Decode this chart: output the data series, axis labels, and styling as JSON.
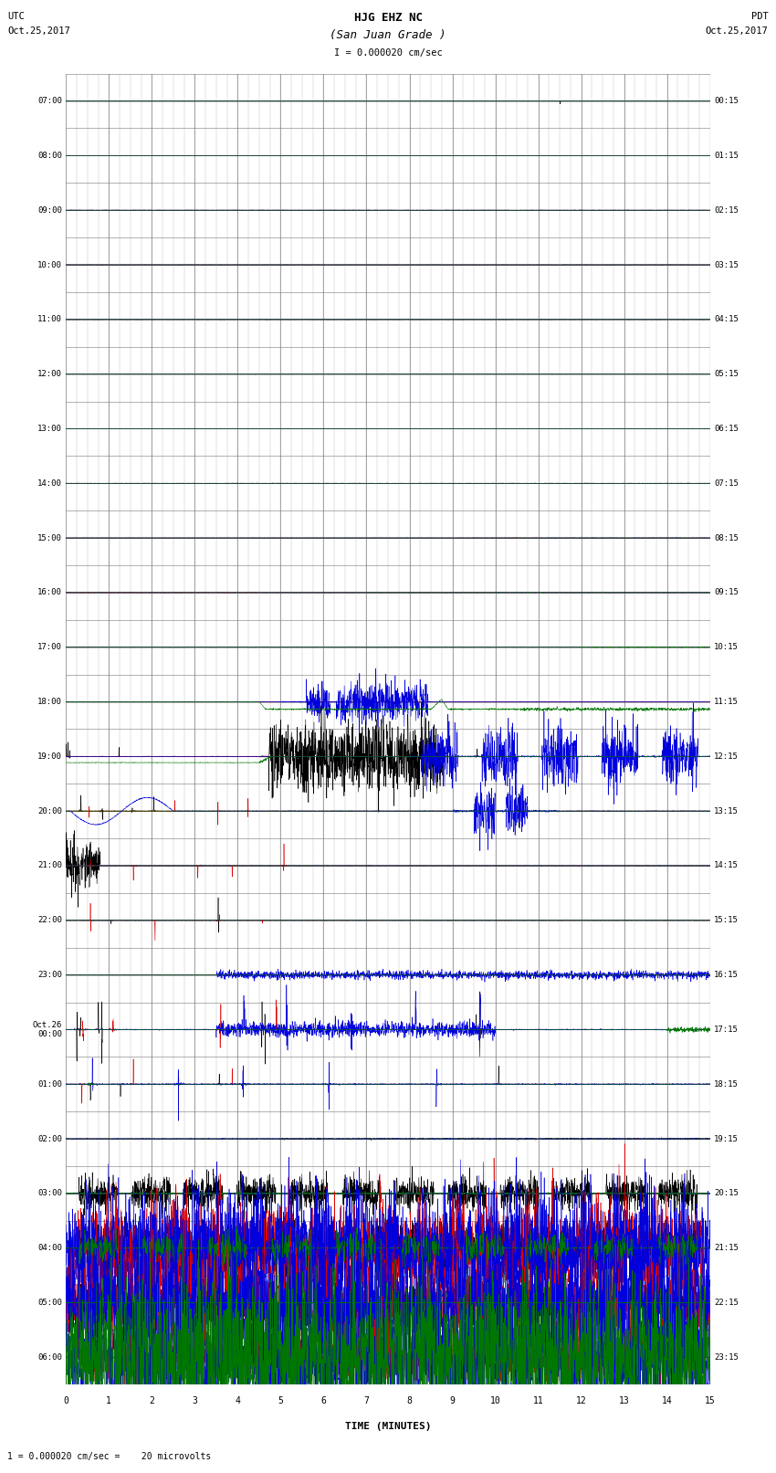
{
  "title_line1": "HJG EHZ NC",
  "title_line2": "(San Juan Grade )",
  "title_scale": "I = 0.000020 cm/sec",
  "left_header_line1": "UTC",
  "left_header_line2": "Oct.25,2017",
  "right_header_line1": "PDT",
  "right_header_line2": "Oct.25,2017",
  "utc_times": [
    "07:00",
    "08:00",
    "09:00",
    "10:00",
    "11:00",
    "12:00",
    "13:00",
    "14:00",
    "15:00",
    "16:00",
    "17:00",
    "18:00",
    "19:00",
    "20:00",
    "21:00",
    "22:00",
    "23:00",
    "Oct.26\n00:00",
    "01:00",
    "02:00",
    "03:00",
    "04:00",
    "05:00",
    "06:00"
  ],
  "pdt_times": [
    "00:15",
    "01:15",
    "02:15",
    "03:15",
    "04:15",
    "05:15",
    "06:15",
    "07:15",
    "08:15",
    "09:15",
    "10:15",
    "11:15",
    "12:15",
    "13:15",
    "14:15",
    "15:15",
    "16:15",
    "17:15",
    "18:15",
    "19:15",
    "20:15",
    "21:15",
    "22:15",
    "23:15"
  ],
  "footer_text": "1 = 0.000020 cm/sec =    20 microvolts",
  "xlabel": "TIME (MINUTES)",
  "bg_color": "#ffffff",
  "grid_major_color": "#777777",
  "grid_minor_color": "#bbbbbb",
  "color_black": "#000000",
  "color_red": "#dd0000",
  "color_blue": "#0000dd",
  "color_green": "#007700",
  "fig_width": 8.5,
  "fig_height": 16.13,
  "num_rows": 24,
  "xlim_min": 0,
  "xlim_max": 15,
  "row_amplitude": 0.45,
  "N": 3000
}
